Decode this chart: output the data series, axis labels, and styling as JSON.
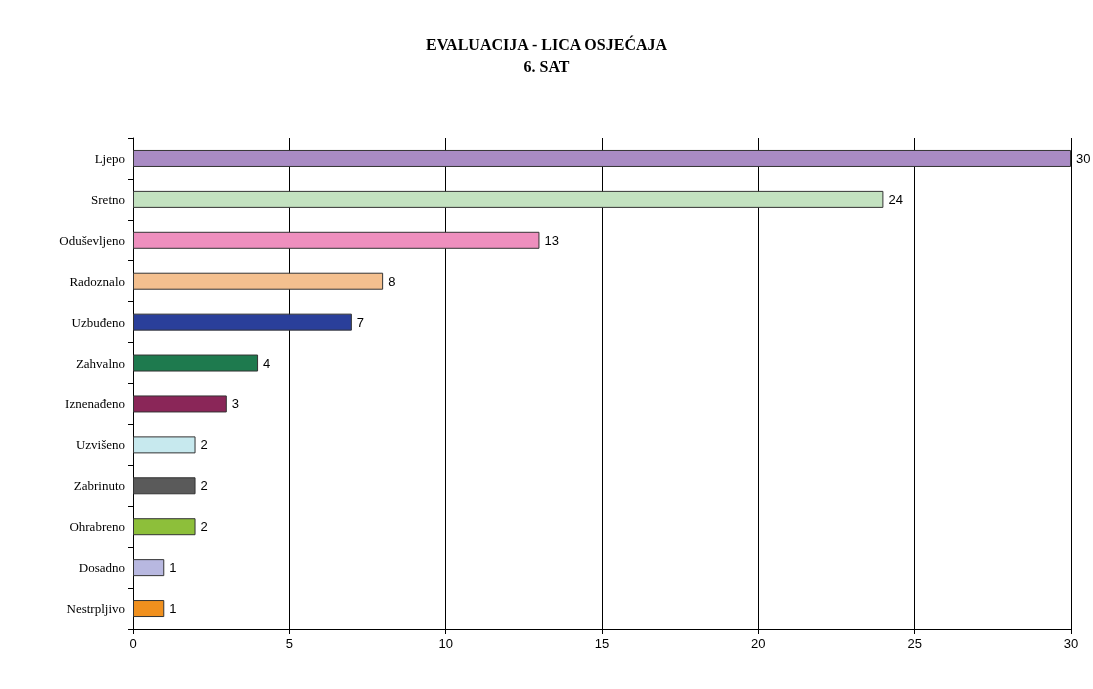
{
  "chart_data": {
    "type": "bar",
    "orientation": "horizontal",
    "title": "EVALUACIJA - LICA OSJEĆAJA\n6. SAT",
    "categories": [
      "Ljepo",
      "Sretno",
      "Oduševljeno",
      "Radoznalo",
      "Uzbuđeno",
      "Zahvalno",
      "Iznenađeno",
      "Uzvišeno",
      "Zabrinuto",
      "Ohrabreno",
      "Dosadno",
      "Nestrpljivo"
    ],
    "values": [
      30,
      24,
      13,
      8,
      7,
      4,
      3,
      2,
      2,
      2,
      1,
      1
    ],
    "colors": [
      "#a98bc4",
      "#c3e2c0",
      "#ee8fbe",
      "#f4c08f",
      "#2a3f9a",
      "#1e7a4e",
      "#8a2658",
      "#c7e9ee",
      "#5a5a5a",
      "#8dbf3a",
      "#b8b8e0",
      "#f0901e"
    ],
    "xlim": [
      0,
      30
    ],
    "xticks": [
      0,
      5,
      10,
      15,
      20,
      25,
      30
    ],
    "grid": "x",
    "data_labels": true
  }
}
